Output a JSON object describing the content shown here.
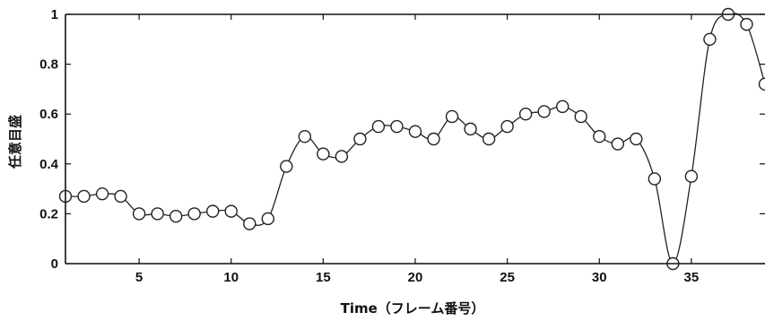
{
  "chart_data": {
    "type": "line",
    "xlabel": "Time（フレーム番号）",
    "ylabel": "任意目盛",
    "xlim": [
      1,
      39
    ],
    "ylim": [
      0,
      1
    ],
    "xticks": [
      5,
      10,
      15,
      20,
      25,
      30,
      35
    ],
    "xtick_labels": [
      "5",
      "10",
      "15",
      "20",
      "25",
      "30",
      "35"
    ],
    "yticks": [
      0,
      0.2,
      0.4,
      0.6,
      0.8,
      1
    ],
    "ytick_labels": [
      "0",
      "0.2",
      "0.4",
      "0.6",
      "0.8",
      "1"
    ],
    "grid": false,
    "marker": "circle",
    "line_color": "#222222",
    "marker_color": "#222222",
    "series": [
      {
        "x": [
          1,
          2,
          3,
          4,
          5,
          6,
          7,
          8,
          9,
          10,
          11,
          12,
          13,
          14,
          15,
          16,
          17,
          18,
          19,
          20,
          21,
          22,
          23,
          24,
          25,
          26,
          27,
          28,
          29,
          30,
          31,
          32,
          33,
          34,
          35,
          36,
          37,
          38,
          39
        ],
        "y": [
          0.27,
          0.27,
          0.28,
          0.27,
          0.2,
          0.2,
          0.19,
          0.2,
          0.21,
          0.21,
          0.16,
          0.18,
          0.39,
          0.51,
          0.44,
          0.43,
          0.5,
          0.55,
          0.55,
          0.53,
          0.5,
          0.59,
          0.54,
          0.5,
          0.55,
          0.6,
          0.61,
          0.63,
          0.59,
          0.51,
          0.48,
          0.5,
          0.34,
          0.0,
          0.35,
          0.9,
          1.0,
          0.96,
          0.72
        ]
      }
    ]
  }
}
